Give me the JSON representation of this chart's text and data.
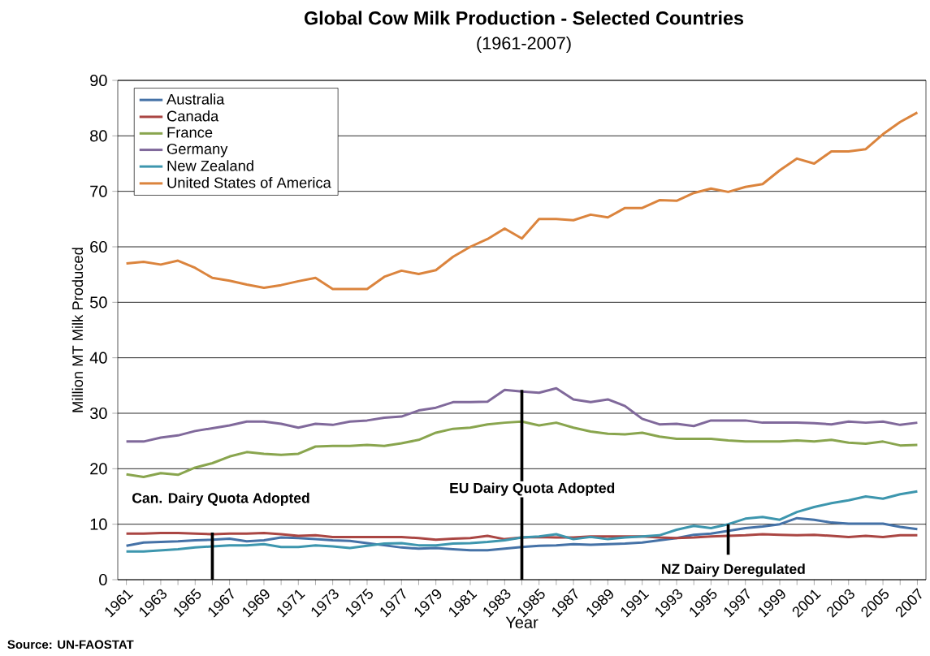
{
  "chart_data": {
    "type": "line",
    "title": "Global Cow Milk Production - Selected Countries",
    "subtitle": "(1961-2007)",
    "xlabel": "Year",
    "ylabel": "Million MT Milk Produced",
    "x": [
      1961,
      1962,
      1963,
      1964,
      1965,
      1966,
      1967,
      1968,
      1969,
      1970,
      1971,
      1972,
      1973,
      1974,
      1975,
      1976,
      1977,
      1978,
      1979,
      1980,
      1981,
      1982,
      1983,
      1984,
      1985,
      1986,
      1987,
      1988,
      1989,
      1990,
      1991,
      1992,
      1993,
      1994,
      1995,
      1996,
      1997,
      1998,
      1999,
      2000,
      2001,
      2002,
      2003,
      2004,
      2005,
      2006,
      2007
    ],
    "xlim": [
      1960.5,
      2007.5
    ],
    "xticks": [
      1961,
      {
        "value": 1962,
        "label": null
      },
      1963,
      {
        "value": 1964,
        "label": null
      },
      1965,
      {
        "value": 1966,
        "label": null
      },
      1967,
      {
        "value": 1968,
        "label": null
      },
      1969,
      {
        "value": 1970,
        "label": null
      },
      1971,
      {
        "value": 1972,
        "label": null
      },
      1973,
      {
        "value": 1974,
        "label": null
      },
      1975,
      {
        "value": 1976,
        "label": null
      },
      1977,
      {
        "value": 1978,
        "label": null
      },
      1979,
      {
        "value": 1980,
        "label": null
      },
      1981,
      {
        "value": 1982,
        "label": null
      },
      1983,
      {
        "value": 1984,
        "label": null
      },
      1985,
      {
        "value": 1986,
        "label": null
      },
      1987,
      {
        "value": 1988,
        "label": null
      },
      1989,
      {
        "value": 1990,
        "label": null
      },
      1991,
      {
        "value": 1992,
        "label": null
      },
      1993,
      {
        "value": 1994,
        "label": null
      },
      1995,
      {
        "value": 1996,
        "label": null
      },
      1997,
      {
        "value": 1998,
        "label": null
      },
      1999,
      {
        "value": 2000,
        "label": null
      },
      2001,
      {
        "value": 2002,
        "label": null
      },
      2003,
      {
        "value": 2004,
        "label": null
      },
      2005,
      {
        "value": 2006,
        "label": null
      },
      2007
    ],
    "ylim": [
      0,
      90
    ],
    "yticks": [
      0,
      10,
      20,
      30,
      40,
      50,
      60,
      70,
      80,
      90
    ],
    "grid": "y",
    "legend": "top left",
    "marker": "none",
    "line_style": "solid",
    "series": [
      {
        "name": "Australia",
        "color": "#4572a7",
        "values": [
          6.1,
          6.7,
          6.8,
          6.9,
          7.1,
          7.2,
          7.4,
          6.9,
          7.1,
          7.6,
          7.5,
          7.3,
          7.1,
          7.0,
          6.6,
          6.2,
          5.8,
          5.6,
          5.7,
          5.5,
          5.3,
          5.3,
          5.6,
          5.9,
          6.1,
          6.2,
          6.4,
          6.3,
          6.4,
          6.5,
          6.7,
          7.1,
          7.5,
          8.1,
          8.3,
          8.8,
          9.3,
          9.6,
          10.0,
          11.1,
          10.8,
          10.3,
          10.1,
          10.1,
          10.1,
          9.5,
          9.1
        ]
      },
      {
        "name": "Canada",
        "color": "#aa4643",
        "values": [
          8.3,
          8.3,
          8.4,
          8.4,
          8.3,
          8.2,
          8.3,
          8.3,
          8.4,
          8.2,
          7.9,
          8.0,
          7.7,
          7.7,
          7.7,
          7.7,
          7.7,
          7.5,
          7.2,
          7.4,
          7.5,
          7.9,
          7.3,
          7.6,
          7.7,
          7.6,
          7.6,
          7.8,
          7.8,
          7.8,
          7.8,
          7.6,
          7.5,
          7.6,
          7.8,
          7.9,
          8.0,
          8.2,
          8.1,
          8.0,
          8.1,
          7.9,
          7.7,
          7.9,
          7.7,
          8.0,
          8.0
        ]
      },
      {
        "name": "France",
        "color": "#89a54e",
        "values": [
          19.0,
          18.5,
          19.2,
          18.9,
          20.2,
          21.0,
          22.2,
          23.0,
          22.7,
          22.5,
          22.7,
          24.0,
          24.1,
          24.1,
          24.3,
          24.1,
          24.6,
          25.2,
          26.5,
          27.2,
          27.4,
          28.0,
          28.3,
          28.5,
          27.8,
          28.3,
          27.4,
          26.7,
          26.3,
          26.2,
          26.5,
          25.8,
          25.4,
          25.4,
          25.4,
          25.1,
          24.9,
          24.9,
          24.9,
          25.1,
          24.9,
          25.2,
          24.7,
          24.5,
          24.9,
          24.2,
          24.3
        ]
      },
      {
        "name": "Germany",
        "color": "#80699b",
        "values": [
          24.9,
          24.9,
          25.6,
          26.0,
          26.8,
          27.3,
          27.8,
          28.5,
          28.5,
          28.1,
          27.4,
          28.1,
          27.9,
          28.5,
          28.7,
          29.2,
          29.4,
          30.5,
          31.0,
          32.0,
          32.0,
          32.1,
          34.2,
          33.9,
          33.7,
          34.5,
          32.5,
          32.0,
          32.5,
          31.3,
          29.0,
          28.0,
          28.1,
          27.7,
          28.7,
          28.7,
          28.7,
          28.3,
          28.3,
          28.3,
          28.2,
          28.0,
          28.5,
          28.3,
          28.5,
          27.9,
          28.3
        ]
      },
      {
        "name": "New Zealand",
        "color": "#3d96ae",
        "values": [
          5.1,
          5.1,
          5.3,
          5.5,
          5.8,
          6.0,
          6.2,
          6.2,
          6.4,
          5.9,
          5.9,
          6.2,
          6.0,
          5.7,
          6.1,
          6.5,
          6.6,
          6.2,
          6.2,
          6.5,
          6.6,
          6.8,
          7.1,
          7.6,
          7.8,
          8.2,
          7.3,
          7.7,
          7.3,
          7.6,
          7.8,
          8.0,
          9.0,
          9.7,
          9.3,
          10.0,
          11.0,
          11.3,
          10.8,
          12.2,
          13.1,
          13.8,
          14.3,
          15.0,
          14.6,
          15.4,
          15.9
        ]
      },
      {
        "name": "United States of America",
        "color": "#db843d",
        "values": [
          57.0,
          57.3,
          56.8,
          57.5,
          56.2,
          54.4,
          53.9,
          53.2,
          52.6,
          53.1,
          53.8,
          54.4,
          52.4,
          52.4,
          52.4,
          54.6,
          55.7,
          55.1,
          55.8,
          58.2,
          60.0,
          61.4,
          63.3,
          61.5,
          65.0,
          65.0,
          64.8,
          65.8,
          65.3,
          67.0,
          67.0,
          68.4,
          68.3,
          69.7,
          70.5,
          69.9,
          70.8,
          71.3,
          73.8,
          75.9,
          75.0,
          77.2,
          77.2,
          77.6,
          80.3,
          82.5,
          84.2
        ]
      }
    ],
    "ref_lines": [
      {
        "axis": "x",
        "value": 1966,
        "label": "Can. Dairy Quota  Adopted",
        "color": "#000000"
      },
      {
        "axis": "x",
        "value": 1984,
        "label": "EU Dairy Quota  Adopted",
        "color": "#000000"
      },
      {
        "axis": "x",
        "value": 1996,
        "label": "NZ Dairy Deregulated",
        "color": "#000000"
      }
    ],
    "annotations": [
      "Source: UN-FAOSTAT"
    ]
  }
}
